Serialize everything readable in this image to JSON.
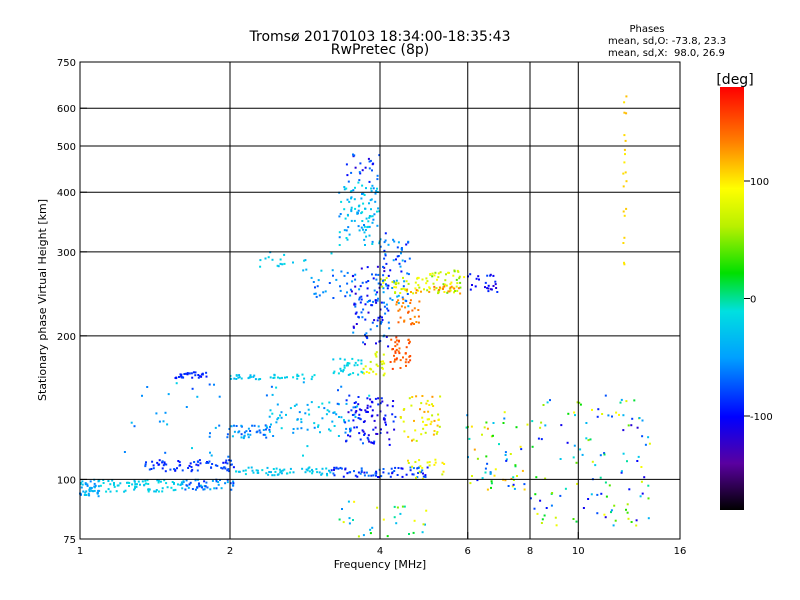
{
  "chart_data": {
    "type": "scatter",
    "title": "Tromsø 20170103 18:34:00-18:35:43",
    "subtitle": "RwPretec (8p)",
    "stats": {
      "heading": "Phases",
      "line1": "mean, sd,O: -73.8, 23.3",
      "line2": "mean, sd,X:  98.0, 26.9"
    },
    "xlabel": "Frequency [MHz]",
    "ylabel": "Stationary phase Virtual Height [km]",
    "x_scale": "log",
    "y_scale": "log",
    "xlim": [
      1,
      16
    ],
    "ylim": [
      75,
      750
    ],
    "x_ticks": [
      1,
      2,
      4,
      6,
      8,
      10,
      16
    ],
    "x_tick_labels": [
      "1",
      "2",
      "4",
      "6",
      "8",
      "10",
      "16"
    ],
    "y_ticks": [
      75,
      100,
      200,
      300,
      400,
      500,
      600,
      750
    ],
    "y_tick_labels": [
      "75",
      "100",
      "200",
      "300",
      "400",
      "500",
      "600",
      "750"
    ],
    "grid_x": [
      2,
      4,
      6,
      8,
      10
    ],
    "grid_y": [
      100,
      200,
      300,
      400,
      500,
      600
    ],
    "colorbar": {
      "label": "[deg]",
      "range": [
        -180,
        180
      ],
      "ticks": [
        100,
        0,
        -100
      ],
      "tick_labels": [
        "100",
        "0",
        "-100"
      ]
    },
    "clusters": [
      {
        "f": [
          0.97,
          1.1
        ],
        "h": [
          92,
          100
        ],
        "phase": [
          -20,
          -60
        ],
        "n": 60
      },
      {
        "f": [
          1.1,
          1.62
        ],
        "h": [
          94,
          100
        ],
        "phase": [
          -30,
          -10
        ],
        "n": 70
      },
      {
        "f": [
          1.6,
          2.05
        ],
        "h": [
          95,
          100
        ],
        "phase": [
          -90,
          -30
        ],
        "n": 50
      },
      {
        "f": [
          1.35,
          2.05
        ],
        "h": [
          104,
          110
        ],
        "phase": [
          -100,
          -70
        ],
        "n": 70
      },
      {
        "f": [
          2.05,
          3.2
        ],
        "h": [
          102,
          106
        ],
        "phase": [
          -40,
          -10
        ],
        "n": 60
      },
      {
        "f": [
          3.2,
          5.0
        ],
        "h": [
          101,
          106
        ],
        "phase": [
          -110,
          -60
        ],
        "n": 70
      },
      {
        "f": [
          4.5,
          5.5
        ],
        "h": [
          100,
          110
        ],
        "phase": [
          60,
          110
        ],
        "n": 20
      },
      {
        "f": [
          1.95,
          2.45
        ],
        "h": [
          122,
          130
        ],
        "phase": [
          -80,
          -30
        ],
        "n": 40
      },
      {
        "f": [
          2.4,
          3.6
        ],
        "h": [
          125,
          145
        ],
        "phase": [
          -60,
          -10
        ],
        "n": 60
      },
      {
        "f": [
          3.4,
          4.3
        ],
        "h": [
          118,
          150
        ],
        "phase": [
          -120,
          -80
        ],
        "n": 90
      },
      {
        "f": [
          4.4,
          5.3
        ],
        "h": [
          120,
          150
        ],
        "phase": [
          60,
          130
        ],
        "n": 50
      },
      {
        "f": [
          1.55,
          1.8
        ],
        "h": [
          163,
          168
        ],
        "phase": [
          -100,
          -80
        ],
        "n": 30
      },
      {
        "f": [
          2.0,
          2.3
        ],
        "h": [
          162,
          166
        ],
        "phase": [
          -40,
          -20
        ],
        "n": 20
      },
      {
        "f": [
          2.4,
          3.0
        ],
        "h": [
          162,
          166
        ],
        "phase": [
          -30,
          -10
        ],
        "n": 20
      },
      {
        "f": [
          3.2,
          3.7
        ],
        "h": [
          165,
          180
        ],
        "phase": [
          -30,
          -10
        ],
        "n": 30
      },
      {
        "f": [
          3.7,
          4.1
        ],
        "h": [
          165,
          185
        ],
        "phase": [
          60,
          100
        ],
        "n": 25
      },
      {
        "f": [
          4.2,
          4.6
        ],
        "h": [
          170,
          200
        ],
        "phase": [
          140,
          160
        ],
        "n": 40
      },
      {
        "f": [
          3.5,
          4.2
        ],
        "h": [
          190,
          280
        ],
        "phase": [
          -120,
          -50
        ],
        "n": 100
      },
      {
        "f": [
          4.0,
          4.6
        ],
        "h": [
          230,
          330
        ],
        "phase": [
          -100,
          -40
        ],
        "n": 60
      },
      {
        "f": [
          4.3,
          4.8
        ],
        "h": [
          210,
          240
        ],
        "phase": [
          130,
          150
        ],
        "n": 30
      },
      {
        "f": [
          4.0,
          5.0
        ],
        "h": [
          245,
          265
        ],
        "phase": [
          50,
          100
        ],
        "n": 40
      },
      {
        "f": [
          5.0,
          5.9
        ],
        "h": [
          245,
          275
        ],
        "phase": [
          40,
          100
        ],
        "n": 50
      },
      {
        "f": [
          4.5,
          5.9
        ],
        "h": [
          245,
          255
        ],
        "phase": [
          120,
          140
        ],
        "n": 20
      },
      {
        "f": [
          6.0,
          6.9
        ],
        "h": [
          245,
          270
        ],
        "phase": [
          -120,
          -80
        ],
        "n": 25
      },
      {
        "f": [
          3.3,
          4.0
        ],
        "h": [
          310,
          420
        ],
        "phase": [
          -60,
          -10
        ],
        "n": 100
      },
      {
        "f": [
          3.4,
          4.0
        ],
        "h": [
          420,
          480
        ],
        "phase": [
          -120,
          -60
        ],
        "n": 25
      },
      {
        "f": [
          2.9,
          3.7
        ],
        "h": [
          240,
          275
        ],
        "phase": [
          -80,
          -40
        ],
        "n": 30
      },
      {
        "f": [
          2.2,
          3.2
        ],
        "h": [
          270,
          300
        ],
        "phase": [
          -40,
          -10
        ],
        "n": 20
      },
      {
        "f": [
          5.8,
          8.0
        ],
        "h": [
          95,
          140
        ],
        "phase": [
          -100,
          130
        ],
        "n": 60
      },
      {
        "f": [
          8.0,
          14.0
        ],
        "h": [
          80,
          150
        ],
        "phase": [
          -120,
          100
        ],
        "n": 120
      },
      {
        "f": [
          12.3,
          12.5
        ],
        "h": [
          260,
          650
        ],
        "phase": [
          100,
          120
        ],
        "n": 20
      },
      {
        "f": [
          3.3,
          5.0
        ],
        "h": [
          75,
          90
        ],
        "phase": [
          -60,
          100
        ],
        "n": 30
      },
      {
        "f": [
          1.2,
          4.0
        ],
        "h": [
          110,
          160
        ],
        "phase": [
          -80,
          -10
        ],
        "n": 50
      }
    ]
  }
}
